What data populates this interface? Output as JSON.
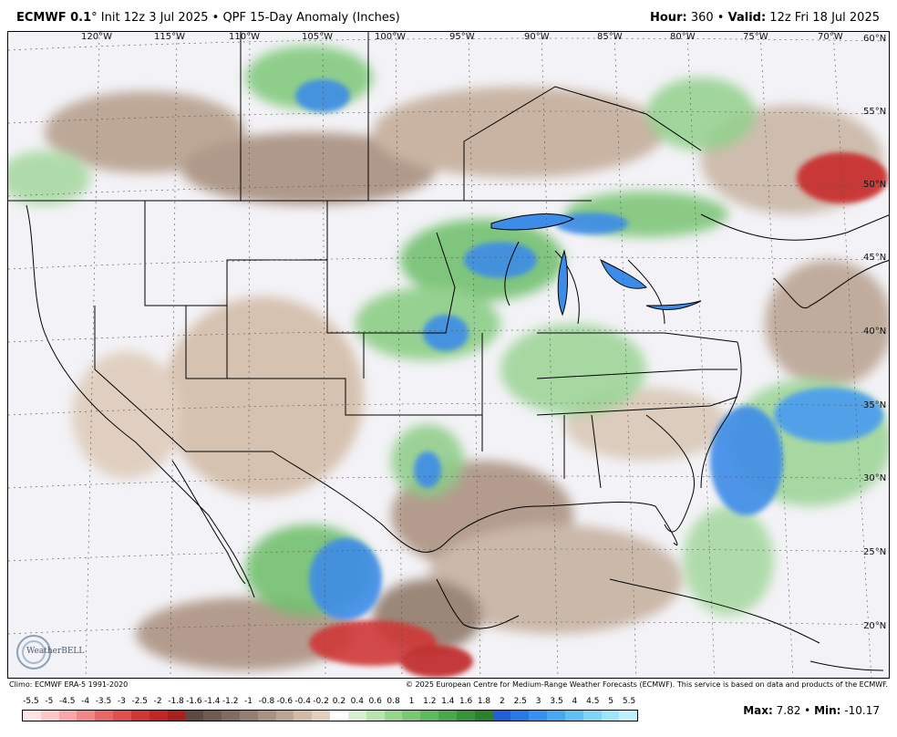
{
  "header": {
    "model": "ECMWF 0.1",
    "degree": "°",
    "init": "Init 12z 3 Jul 2025",
    "sep": "•",
    "product": "QPF 15-Day Anomaly (Inches)",
    "hour_label": "Hour:",
    "hour_value": "360",
    "valid_label": "Valid:",
    "valid_value": "12z Fri 18 Jul 2025"
  },
  "map": {
    "longitudes": [
      "120°W",
      "115°W",
      "110°W",
      "105°W",
      "100°W",
      "95°W",
      "90°W",
      "85°W",
      "80°W",
      "75°W",
      "70°W"
    ],
    "latitudes": [
      "60°N",
      "55°N",
      "50°N",
      "45°N",
      "40°N",
      "35°N",
      "30°N",
      "25°N",
      "20°N"
    ],
    "logo_text": "WeatherBELL"
  },
  "footer": {
    "climo": "Climo: ECMWF ERA-5 1991-2020",
    "copyright": "© 2025 European Centre for Medium-Range Weather Forecasts (ECMWF). This service is based on data and products of the ECMWF."
  },
  "colorbar": {
    "ticks": [
      "-5.5",
      "-5",
      "-4.5",
      "-4",
      "-3.5",
      "-3",
      "-2.5",
      "-2",
      "-1.8",
      "-1.6",
      "-1.4",
      "-1.2",
      "-1",
      "-0.8",
      "-0.6",
      "-0.4",
      "-0.2",
      "0.2",
      "0.4",
      "0.6",
      "0.8",
      "1",
      "1.2",
      "1.4",
      "1.6",
      "1.8",
      "2",
      "2.5",
      "3",
      "3.5",
      "4",
      "4.5",
      "5",
      "5.5"
    ],
    "colors": [
      "#ffe4e4",
      "#ffc8c8",
      "#f8a8a8",
      "#f08888",
      "#e86868",
      "#e05050",
      "#d03838",
      "#c02828",
      "#a82020",
      "#5e4a44",
      "#705a52",
      "#826c62",
      "#967e72",
      "#aa9282",
      "#bea694",
      "#d2baa6",
      "#e2cebc",
      "#ffffff",
      "#d8f0d0",
      "#b8e4b0",
      "#98d690",
      "#7ac874",
      "#5eba5c",
      "#48a84a",
      "#389438",
      "#2c8030",
      "#2060d8",
      "#2878e8",
      "#3890f0",
      "#48a8f0",
      "#60c0f4",
      "#80d4f8",
      "#a0e4fa",
      "#c0f0fc"
    ]
  },
  "stats": {
    "max_label": "Max:",
    "max_value": "7.82",
    "min_label": "Min:",
    "min_value": "-10.17"
  }
}
